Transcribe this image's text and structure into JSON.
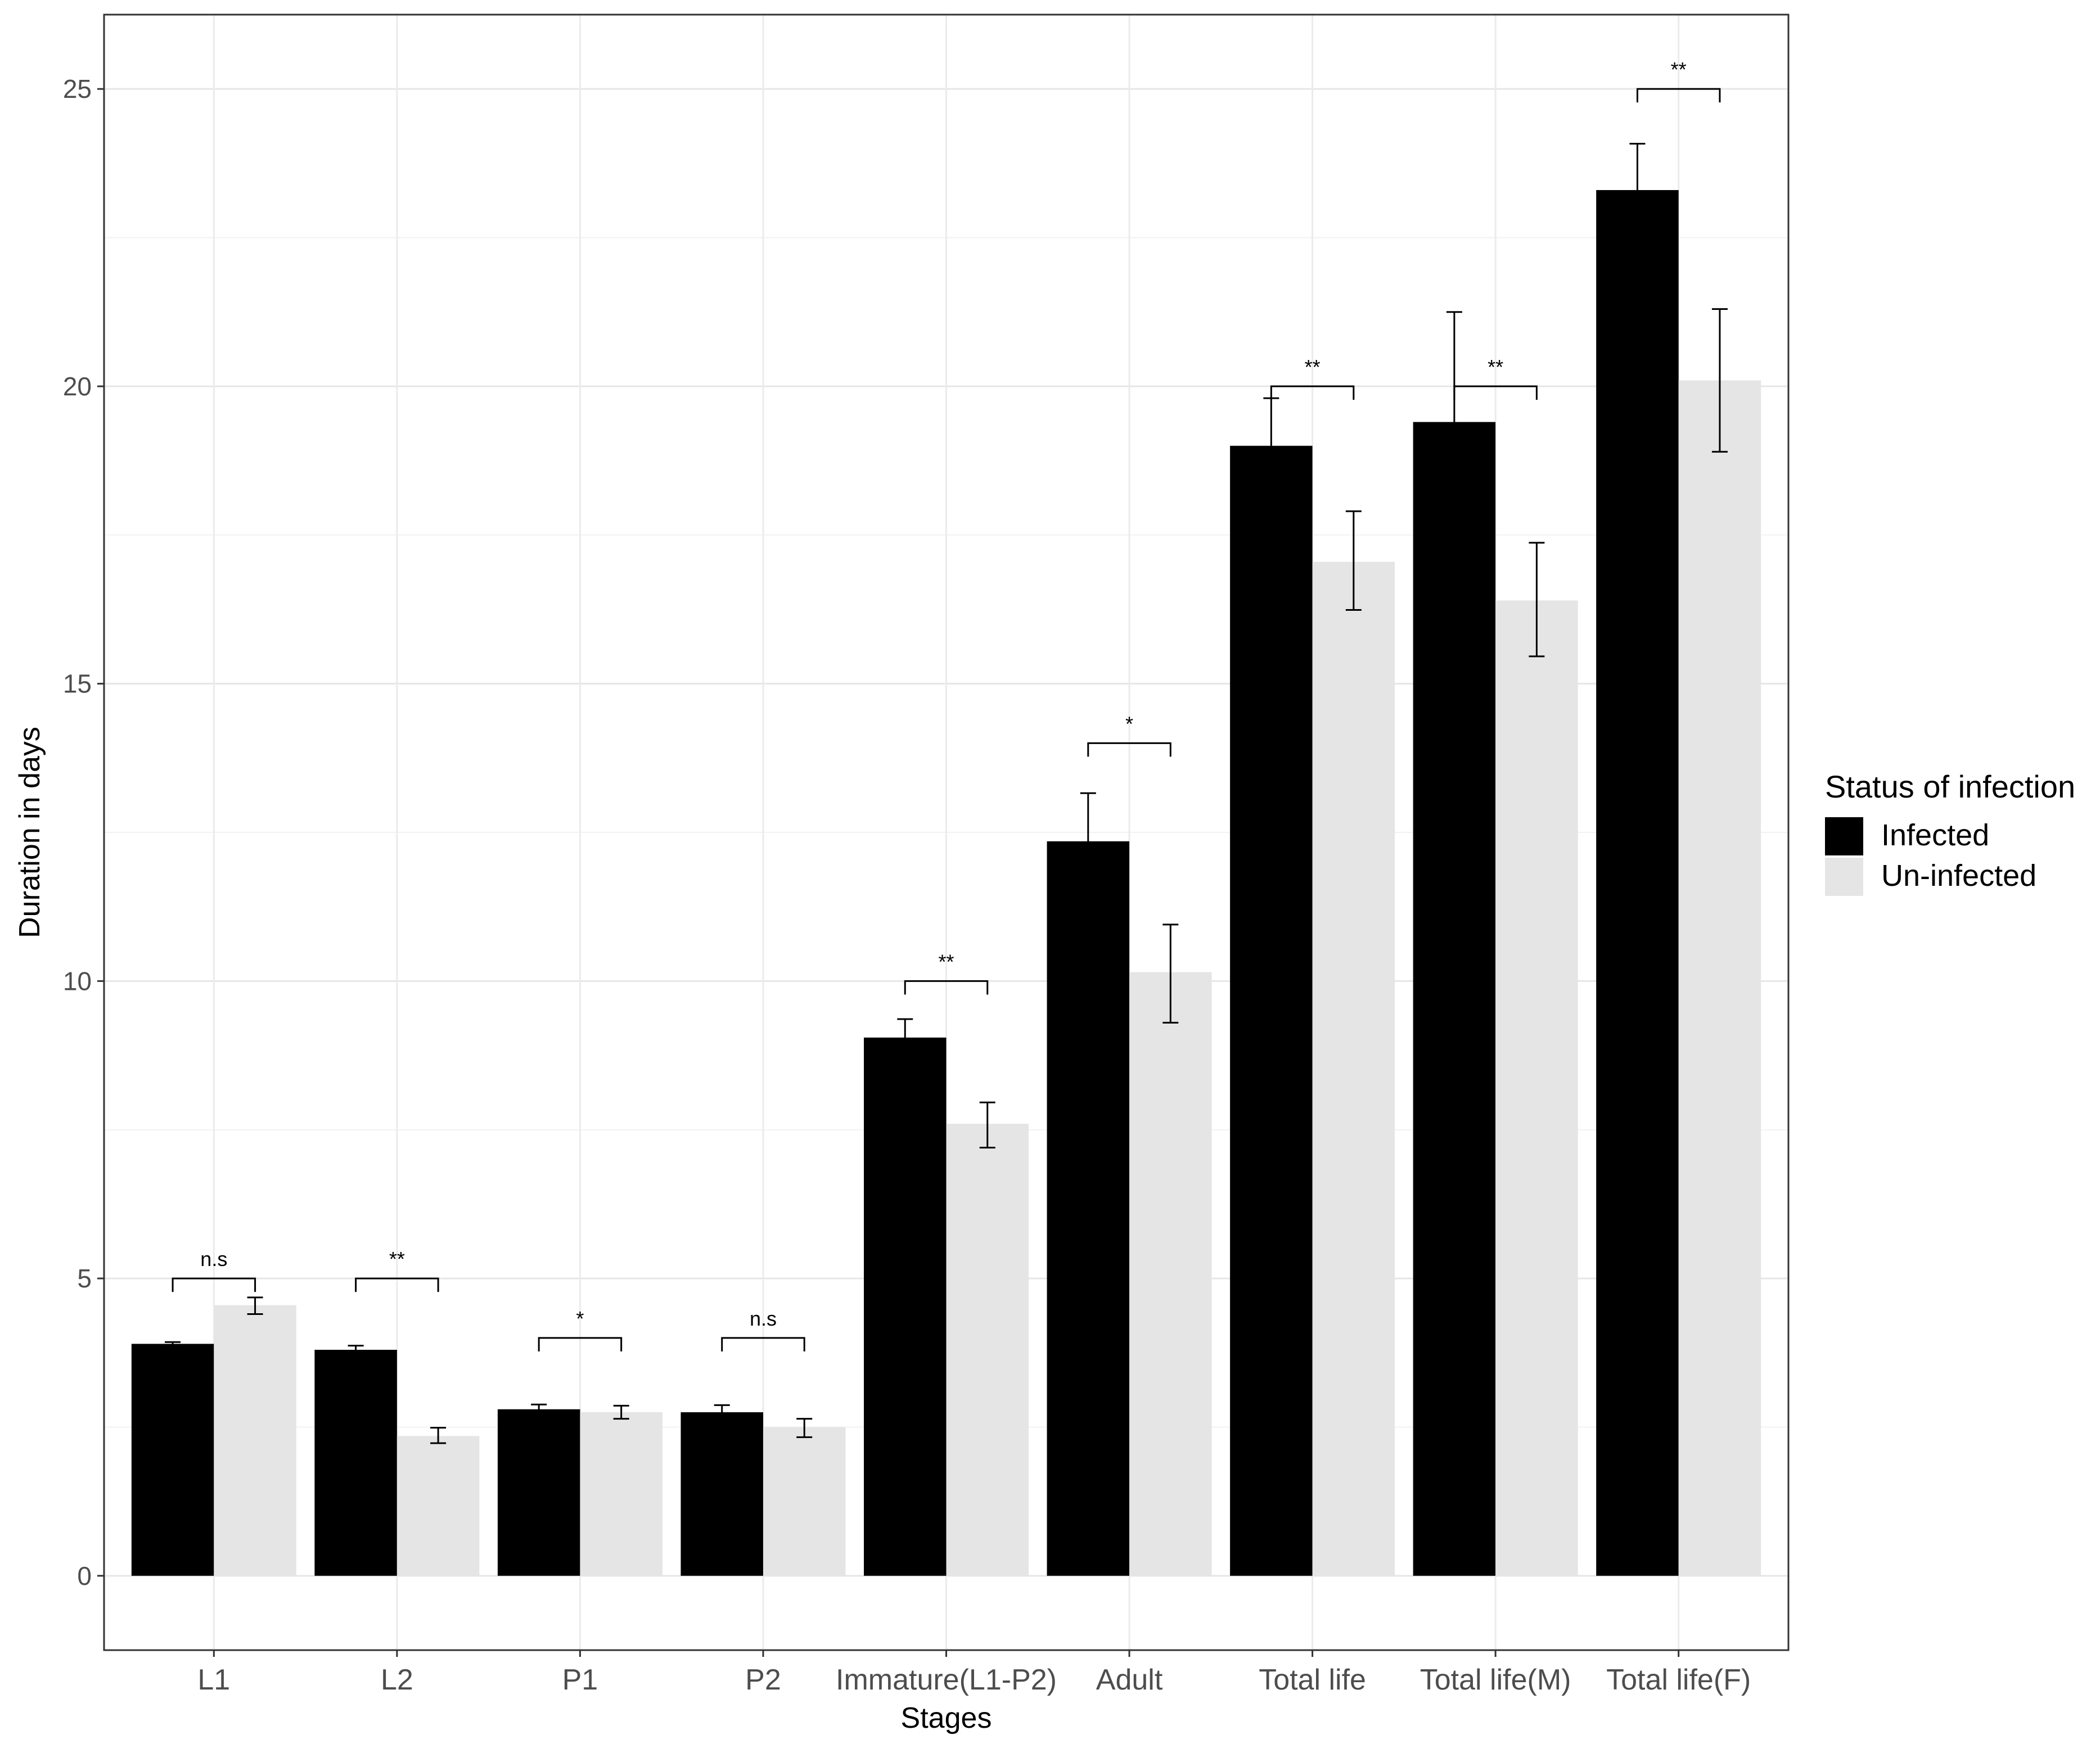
{
  "chart_data": {
    "type": "bar",
    "title": "",
    "xlabel": "Stages",
    "ylabel": "Duration in days",
    "ylim": [
      -1.25,
      26.25
    ],
    "yticks": [
      0,
      5,
      10,
      15,
      20,
      25
    ],
    "grid": true,
    "legend_position": "right",
    "legend_title": "Status of infection",
    "categories": [
      "L1",
      "L2",
      "P1",
      "P2",
      "Immature(L1-P2)",
      "Adult",
      "Total life",
      "Total life(M)",
      "Total life(F)"
    ],
    "series": [
      {
        "name": "Infected",
        "color": "#000000",
        "values": [
          3.9,
          3.8,
          2.8,
          2.75,
          9.05,
          12.35,
          19.0,
          19.4,
          23.3
        ],
        "error_low": [
          3.85,
          3.74,
          2.72,
          2.63,
          8.74,
          11.56,
          18.24,
          17.64,
          22.55
        ],
        "error_high": [
          3.93,
          3.87,
          2.88,
          2.87,
          9.36,
          13.16,
          19.8,
          21.25,
          24.08
        ]
      },
      {
        "name": "Un-infected",
        "color": "#e5e5e5",
        "values": [
          4.55,
          2.35,
          2.75,
          2.5,
          7.6,
          10.15,
          17.05,
          16.4,
          20.1
        ],
        "error_low": [
          4.4,
          2.23,
          2.64,
          2.33,
          7.2,
          9.3,
          16.24,
          15.46,
          18.9
        ],
        "error_high": [
          4.68,
          2.49,
          2.86,
          2.64,
          7.96,
          10.95,
          17.9,
          17.37,
          21.3
        ]
      }
    ],
    "significance": [
      {
        "category": "L1",
        "label": "n.s",
        "bracket_y": 5.0
      },
      {
        "category": "L2",
        "label": "**",
        "bracket_y": 5.0
      },
      {
        "category": "P1",
        "label": "*",
        "bracket_y": 4.0
      },
      {
        "category": "P2",
        "label": "n.s",
        "bracket_y": 4.0
      },
      {
        "category": "Immature(L1-P2)",
        "label": "**",
        "bracket_y": 10.0
      },
      {
        "category": "Adult",
        "label": "*",
        "bracket_y": 14.0
      },
      {
        "category": "Total life",
        "label": "**",
        "bracket_y": 20.0
      },
      {
        "category": "Total life(M)",
        "label": "**",
        "bracket_y": 20.0
      },
      {
        "category": "Total life(F)",
        "label": "**",
        "bracket_y": 25.0
      }
    ]
  }
}
